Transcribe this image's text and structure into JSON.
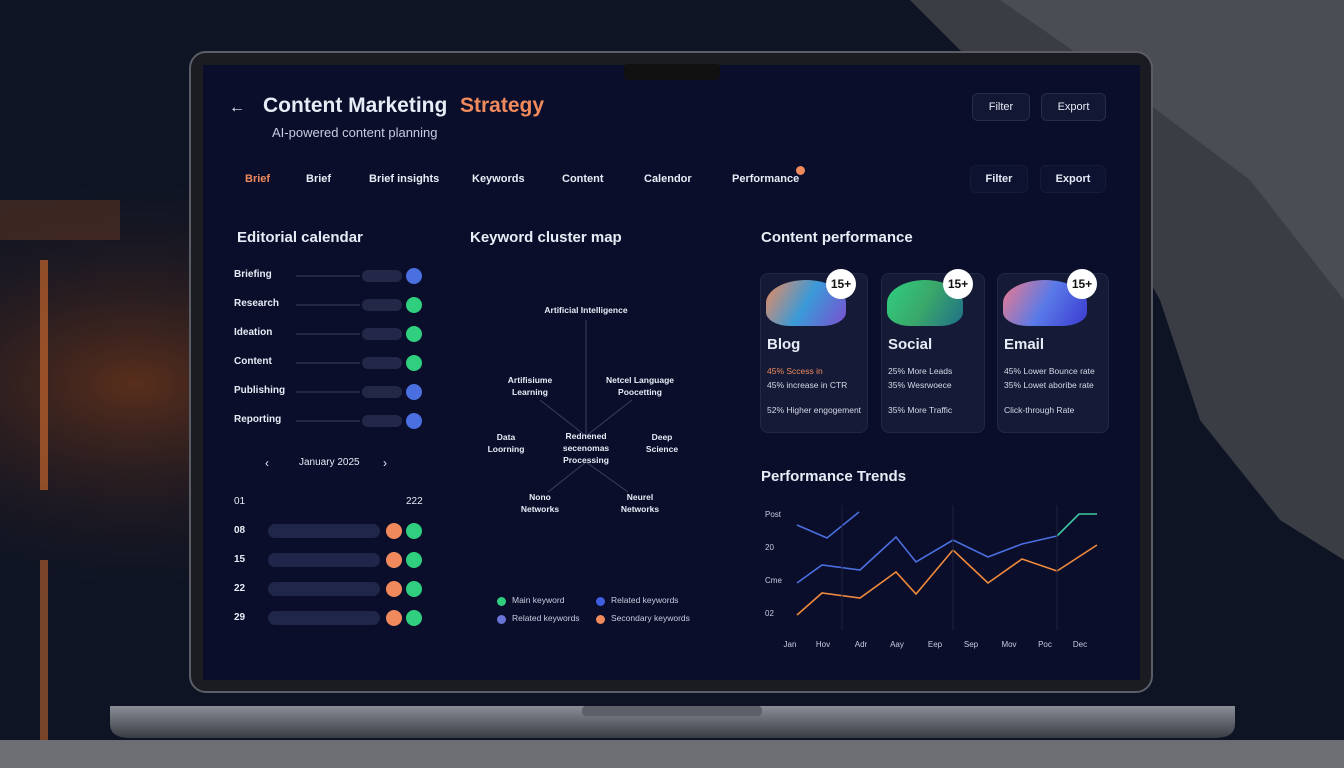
{
  "header": {
    "title": "Content Marketing",
    "title_accent": "Strategy",
    "subtitle": "AI-powered content planning",
    "buttons": [
      "Filter",
      "Export"
    ]
  },
  "tabs": {
    "items": [
      "Brief",
      "Brief",
      "Brief insights",
      "Keywords",
      "Content",
      "Calendor",
      "Performance"
    ],
    "actions": [
      "Filter",
      "Export"
    ]
  },
  "editorial_calendar": {
    "title": "Editorial calendar",
    "stages": [
      {
        "label": "Briefing",
        "color": "#4a6fe0"
      },
      {
        "label": "Research",
        "color": "#2fcf7f"
      },
      {
        "label": "Ideation",
        "color": "#2fcf7f"
      },
      {
        "label": "Content",
        "color": "#2fcf7f"
      },
      {
        "label": "Publishing",
        "color": "#4a6fe0"
      },
      {
        "label": "Reporting",
        "color": "#4a6fe0"
      }
    ],
    "month": "January 2025",
    "first_row": [
      "01",
      "222"
    ],
    "rows": [
      "08",
      "15",
      "22",
      "29"
    ]
  },
  "keyword_map": {
    "title": "Keyword cluster map",
    "nodes": [
      [
        "Artificial Intelligence"
      ],
      [
        "Artifisiume",
        "Learning"
      ],
      [
        "Netcel Language",
        "Poocetting"
      ],
      [
        "Data",
        "Loorning"
      ],
      [
        "Rednened",
        "secenomas",
        "Processing"
      ],
      [
        "Deep",
        "Science"
      ],
      [
        "Nono",
        "Networks"
      ],
      [
        "Neurel",
        "Networks"
      ]
    ],
    "legend": [
      {
        "label": "Main keyword",
        "color": "#2fcf7f"
      },
      {
        "label": "Related keywords",
        "color": "#3e5fe0"
      },
      {
        "label": "Related keywords",
        "color": "#6a74d8"
      },
      {
        "label": "Secondary keywords",
        "color": "#f08a5d"
      }
    ]
  },
  "content_performance": {
    "title": "Content performance",
    "cards": [
      {
        "name": "Blog",
        "badge": "15+",
        "stats": [
          "45% Sccess in",
          "45% increase in CTR",
          "52% Higher engogement"
        ]
      },
      {
        "name": "Social",
        "badge": "15+",
        "stats": [
          "25% More Leads",
          "35% Wesrwoece",
          "35% More Traffic"
        ]
      },
      {
        "name": "Email",
        "badge": "15+",
        "stats": [
          "45% Lower Bounce rate",
          "35% Lowet aboribe rate",
          "Click-through Rate"
        ]
      }
    ]
  },
  "performance_trends": {
    "title": "Performance Trends",
    "y_labels": [
      "Post",
      "20",
      "Cme",
      "02"
    ],
    "x_labels": [
      "Jan",
      "Hov",
      "Adr",
      "Aay",
      "Eep",
      "Sep",
      "Mov",
      "Poc",
      "Dec"
    ]
  }
}
